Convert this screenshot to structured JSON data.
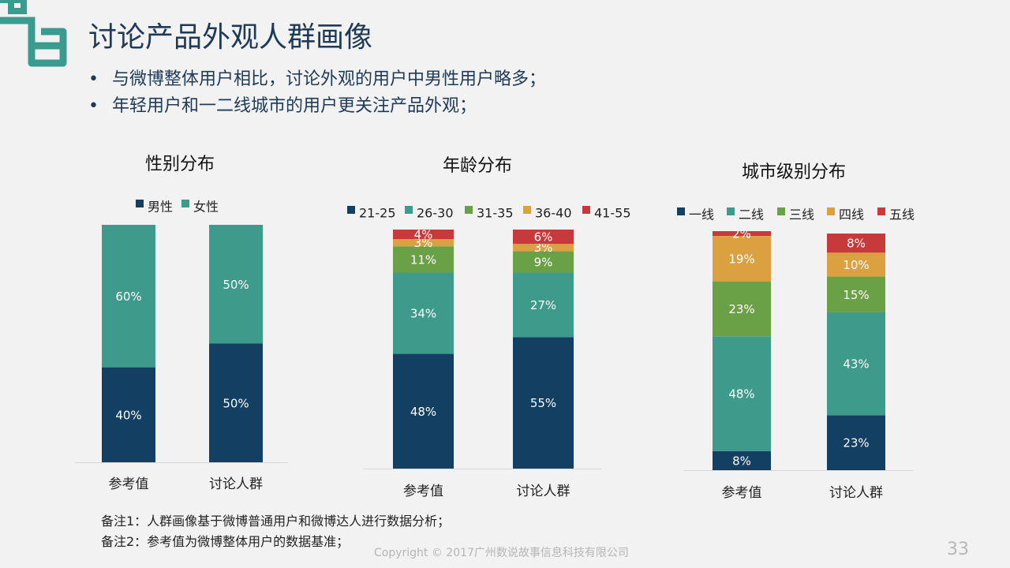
{
  "page": {
    "title": "讨论产品外观人群画像",
    "bullets": [
      "与微博整体用户相比，讨论外观的用户中男性用户略多；",
      "年轻用户和一二线城市的用户更关注产品外观；"
    ],
    "notes": [
      "备注1：人群画像基于微博普通用户和微博达人进行数据分析；",
      "备注2：参考值为微博整体用户的数据基准；"
    ],
    "copyright": "Copyright © 2017广州数说故事信息科技有限公司",
    "page_number": "33"
  },
  "chart_data": [
    {
      "type": "bar",
      "stacked": true,
      "title": "性别分布",
      "categories": [
        "参考值",
        "讨论人群"
      ],
      "series": [
        {
          "name": "男性",
          "color": "#133f63",
          "values": [
            40,
            50
          ],
          "labels": [
            "40%",
            "50%"
          ]
        },
        {
          "name": "女性",
          "color": "#3e9a8b",
          "values": [
            60,
            50
          ],
          "labels": [
            "60%",
            "50%"
          ]
        }
      ],
      "ylim": [
        0,
        100
      ]
    },
    {
      "type": "bar",
      "stacked": true,
      "title": "年龄分布",
      "categories": [
        "参考值",
        "讨论人群"
      ],
      "series": [
        {
          "name": "21-25",
          "color": "#133f63",
          "values": [
            48,
            55
          ],
          "labels": [
            "48%",
            "55%"
          ]
        },
        {
          "name": "26-30",
          "color": "#3e9a8b",
          "values": [
            34,
            27
          ],
          "labels": [
            "34%",
            "27%"
          ]
        },
        {
          "name": "31-35",
          "color": "#6aa046",
          "values": [
            11,
            9
          ],
          "labels": [
            "11%",
            "9%"
          ]
        },
        {
          "name": "36-40",
          "color": "#dba140",
          "values": [
            3,
            3
          ],
          "labels": [
            "3%",
            "3%"
          ]
        },
        {
          "name": "41-55",
          "color": "#c8393b",
          "values": [
            4,
            6
          ],
          "labels": [
            "4%",
            "6%"
          ]
        }
      ],
      "ylim": [
        0,
        100
      ]
    },
    {
      "type": "bar",
      "stacked": true,
      "title": "城市级别分布",
      "categories": [
        "参考值",
        "讨论人群"
      ],
      "series": [
        {
          "name": "一线",
          "color": "#133f63",
          "values": [
            8,
            23
          ],
          "labels": [
            "8%",
            "23%"
          ]
        },
        {
          "name": "二线",
          "color": "#3e9a8b",
          "values": [
            48,
            43
          ],
          "labels": [
            "48%",
            "43%"
          ]
        },
        {
          "name": "三线",
          "color": "#6aa046",
          "values": [
            23,
            15
          ],
          "labels": [
            "23%",
            "15%"
          ]
        },
        {
          "name": "四线",
          "color": "#dba140",
          "values": [
            19,
            10
          ],
          "labels": [
            "19%",
            "10%"
          ]
        },
        {
          "name": "五线",
          "color": "#c8393b",
          "values": [
            2,
            8
          ],
          "labels": [
            "2%",
            "8%"
          ]
        }
      ],
      "ylim": [
        0,
        100
      ]
    }
  ]
}
